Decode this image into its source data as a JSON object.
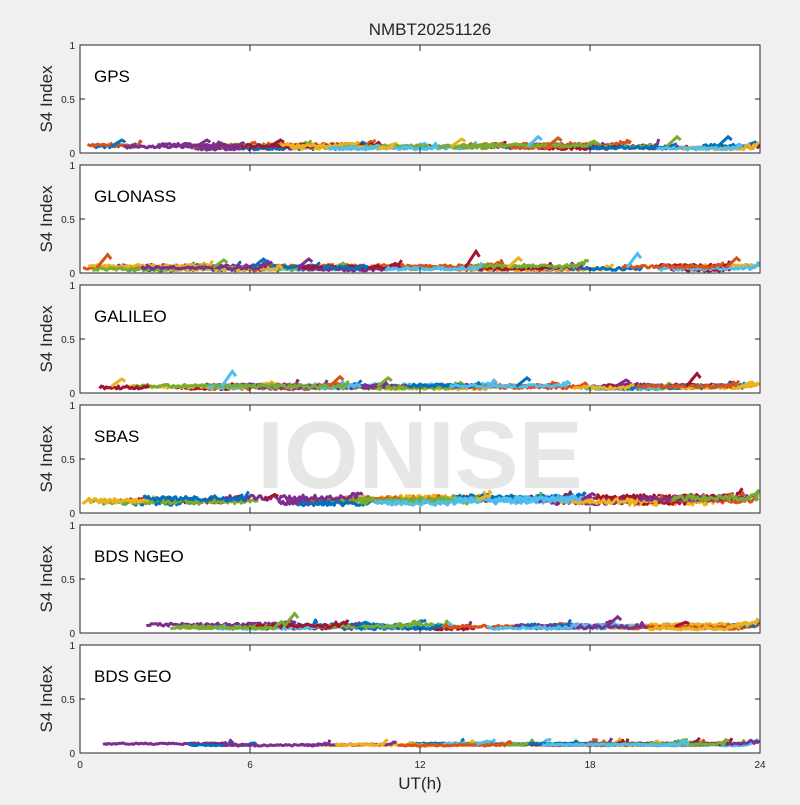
{
  "figure": {
    "title": "NMBT20251126",
    "xlabel": "UT(h)",
    "watermark": "IONISE"
  },
  "chart_data": [
    {
      "type": "line",
      "panel": "GPS",
      "label": "GPS",
      "ylabel": "S4 Index",
      "xlim": [
        0,
        24
      ],
      "ylim": [
        0,
        1
      ],
      "yticks": [
        0,
        0.5,
        1
      ],
      "ytick_labels": [
        "0",
        "0.5",
        "1"
      ],
      "xticks": [
        0,
        6,
        12,
        18,
        24
      ],
      "xtick_labels": [
        "",
        "",
        "",
        "",
        ""
      ],
      "grid": false,
      "base": 0.06,
      "spread": 0.03,
      "spikes": [
        [
          1.6,
          0.12
        ],
        [
          4.6,
          0.12
        ],
        [
          7.2,
          0.12
        ],
        [
          13.6,
          0.13
        ],
        [
          16.3,
          0.15
        ],
        [
          17.0,
          0.14
        ],
        [
          21.2,
          0.15
        ],
        [
          23.0,
          0.15
        ]
      ]
    },
    {
      "type": "line",
      "panel": "GLONASS",
      "label": "GLONASS",
      "ylabel": "S4 Index",
      "xlim": [
        0,
        24
      ],
      "ylim": [
        0,
        1
      ],
      "yticks": [
        0,
        0.5,
        1
      ],
      "ytick_labels": [
        "0",
        "0.5",
        "1"
      ],
      "xticks": [
        0,
        6,
        12,
        18,
        24
      ],
      "xtick_labels": [
        "",
        "",
        "",
        "",
        ""
      ],
      "grid": false,
      "base": 0.05,
      "spread": 0.03,
      "spikes": [
        [
          1.1,
          0.17
        ],
        [
          5.2,
          0.12
        ],
        [
          6.6,
          0.13
        ],
        [
          8.2,
          0.13
        ],
        [
          14.1,
          0.2
        ],
        [
          15.6,
          0.14
        ],
        [
          19.8,
          0.18
        ],
        [
          23.3,
          0.14
        ]
      ]
    },
    {
      "type": "line",
      "panel": "GALILEO",
      "label": "GALILEO",
      "ylabel": "S4 Index",
      "xlim": [
        0,
        24
      ],
      "ylim": [
        0,
        1
      ],
      "yticks": [
        0,
        0.5,
        1
      ],
      "ytick_labels": [
        "0",
        "0.5",
        "1"
      ],
      "xticks": [
        0,
        6,
        12,
        18,
        24
      ],
      "xtick_labels": [
        "",
        "",
        "",
        "",
        ""
      ],
      "grid": false,
      "base": 0.06,
      "spread": 0.03,
      "spikes": [
        [
          1.6,
          0.13
        ],
        [
          5.5,
          0.2
        ],
        [
          9.3,
          0.15
        ],
        [
          11.0,
          0.14
        ],
        [
          15.9,
          0.14
        ],
        [
          19.4,
          0.12
        ],
        [
          21.9,
          0.18
        ],
        [
          23.8,
          0.1
        ]
      ]
    },
    {
      "type": "line",
      "panel": "SBAS",
      "label": "SBAS",
      "ylabel": "S4 Index",
      "xlim": [
        0,
        24
      ],
      "ylim": [
        0,
        1
      ],
      "yticks": [
        0,
        0.5,
        1
      ],
      "ytick_labels": [
        "0",
        "0.5",
        "1"
      ],
      "xticks": [
        0,
        6,
        12,
        18,
        24
      ],
      "xtick_labels": [
        "",
        "",
        "",
        "",
        ""
      ],
      "grid": false,
      "base": 0.12,
      "spread": 0.05,
      "spikes": [
        [
          18.2,
          0.18
        ],
        [
          7.0,
          0.17
        ],
        [
          14.5,
          0.16
        ]
      ]
    },
    {
      "type": "line",
      "panel": "BDS NGEO",
      "label": "BDS NGEO",
      "ylabel": "S4 Index",
      "xlim": [
        0,
        24
      ],
      "ylim": [
        0,
        1
      ],
      "yticks": [
        0,
        0.5,
        1
      ],
      "ytick_labels": [
        "0",
        "0.5",
        "1"
      ],
      "xticks": [
        0,
        6,
        12,
        18,
        24
      ],
      "xtick_labels": [
        "",
        "",
        "",
        "",
        ""
      ],
      "grid": false,
      "base": 0.06,
      "spread": 0.03,
      "spikes": [
        [
          7.7,
          0.18
        ],
        [
          10.2,
          0.1
        ],
        [
          19.1,
          0.15
        ],
        [
          21.5,
          0.1
        ],
        [
          23.6,
          0.1
        ]
      ]
    },
    {
      "type": "line",
      "panel": "BDS GEO",
      "label": "BDS GEO",
      "ylabel": "S4 Index",
      "xlim": [
        0,
        24
      ],
      "ylim": [
        0,
        1
      ],
      "yticks": [
        0,
        0.5,
        1
      ],
      "ytick_labels": [
        "0",
        "0.5",
        "1"
      ],
      "xticks": [
        0,
        6,
        12,
        18,
        24
      ],
      "xtick_labels": [
        "0",
        "6",
        "12",
        "18",
        "24"
      ],
      "grid": false,
      "base": 0.08,
      "spread": 0.015,
      "spikes": [
        [
          14.5,
          0.11
        ]
      ]
    }
  ],
  "colors": {
    "series": [
      "#0072BD",
      "#D95319",
      "#EDB120",
      "#7E2F8E",
      "#77AC30",
      "#4DBEEE",
      "#A2142F"
    ],
    "axes_background": "#ffffff",
    "figure_background": "#f0f0f0",
    "watermark": "#e3e3e3"
  }
}
